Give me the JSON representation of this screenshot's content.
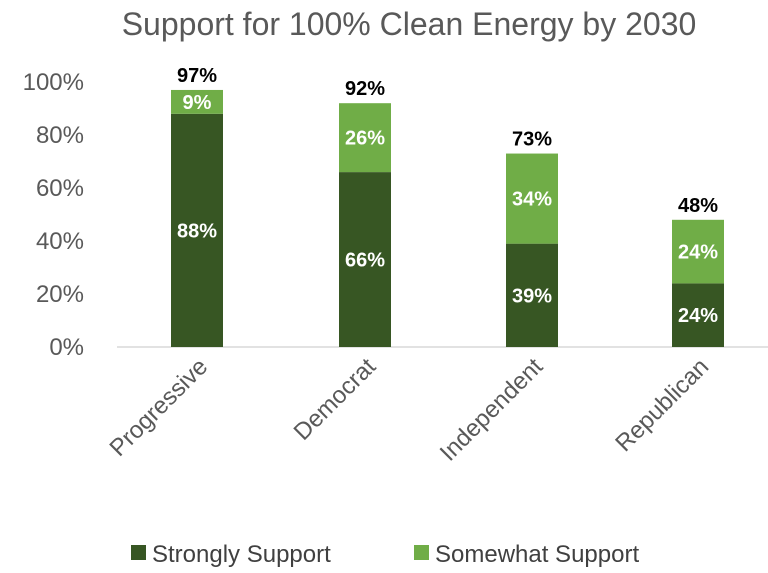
{
  "chart_data": {
    "type": "bar",
    "stacked": true,
    "title": "Support for 100% Clean Energy by 2030",
    "categories": [
      "Progressive",
      "Democrat",
      "Independent",
      "Republican"
    ],
    "series": [
      {
        "name": "Strongly Support",
        "values": [
          88,
          66,
          39,
          24
        ],
        "labels": [
          "88%",
          "66%",
          "39%",
          "24%"
        ],
        "color": "#375623"
      },
      {
        "name": "Somewhat Support",
        "values": [
          9,
          26,
          34,
          24
        ],
        "labels": [
          "9%",
          "26%",
          "34%",
          "24%"
        ],
        "color": "#70AD47"
      }
    ],
    "totals": [
      97,
      92,
      73,
      48
    ],
    "total_labels": [
      "97%",
      "92%",
      "73%",
      "48%"
    ],
    "yticks": [
      "0%",
      "20%",
      "40%",
      "60%",
      "80%",
      "100%"
    ],
    "ytick_values": [
      0,
      20,
      40,
      60,
      80,
      100
    ],
    "ylim": [
      0,
      100
    ],
    "grid": false,
    "legend_position": "bottom",
    "xlabel": "",
    "ylabel": ""
  }
}
